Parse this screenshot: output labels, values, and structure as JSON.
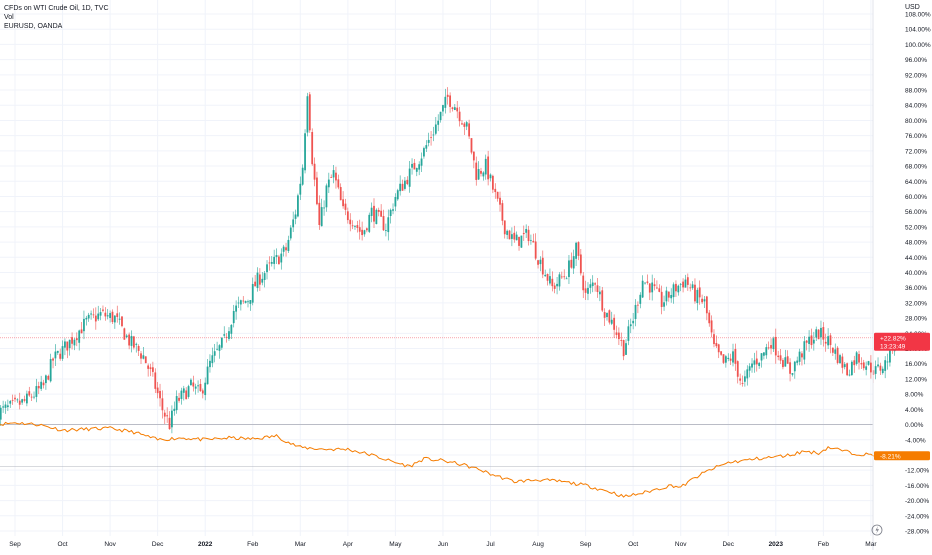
{
  "legend": {
    "symbol": "CFDs on WTI Crude Oil, 1D, TVC",
    "volume": "Vol",
    "compare": "EURUSD, OANDA"
  },
  "currency": "USD",
  "price_badge": {
    "value": "+22.82%",
    "countdown": "13:23:49"
  },
  "compare_badge": {
    "value": "-8.21%"
  },
  "colors": {
    "up": "#26a69a",
    "down": "#ef5350",
    "compare_line": "#f57c00",
    "grid": "#f0f3fa",
    "text": "#131722",
    "badge_price": "#f23645",
    "badge_compare": "#f57c00"
  },
  "chart_data": {
    "type": "line",
    "y_unit": "%",
    "ylim": [
      -28,
      108
    ],
    "y_ticks": [
      "108.00%",
      "104.00%",
      "100.00%",
      "96.00%",
      "92.00%",
      "88.00%",
      "84.00%",
      "80.00%",
      "76.00%",
      "72.00%",
      "68.00%",
      "64.00%",
      "60.00%",
      "56.00%",
      "52.00%",
      "48.00%",
      "44.00%",
      "40.00%",
      "36.00%",
      "32.00%",
      "28.00%",
      "24.00%",
      "20.00%",
      "16.00%",
      "12.00%",
      "8.00%",
      "4.00%",
      "0.00%",
      "-4.00%",
      "-8.00%",
      "-12.00%",
      "-16.00%",
      "-20.00%",
      "-24.00%",
      "-28.00%"
    ],
    "x_ticks": [
      {
        "label": "Sep",
        "m": 0
      },
      {
        "label": "Oct",
        "m": 1
      },
      {
        "label": "Nov",
        "m": 2
      },
      {
        "label": "Dec",
        "m": 3
      },
      {
        "label": "2022",
        "m": 4
      },
      {
        "label": "Feb",
        "m": 5
      },
      {
        "label": "Mar",
        "m": 6
      },
      {
        "label": "Apr",
        "m": 7
      },
      {
        "label": "May",
        "m": 8
      },
      {
        "label": "Jun",
        "m": 9
      },
      {
        "label": "Jul",
        "m": 10
      },
      {
        "label": "Aug",
        "m": 11
      },
      {
        "label": "Sep",
        "m": 12
      },
      {
        "label": "Oct",
        "m": 13
      },
      {
        "label": "Nov",
        "m": 14
      },
      {
        "label": "Dec",
        "m": 15
      },
      {
        "label": "2023",
        "m": 16
      },
      {
        "label": "Feb",
        "m": 17
      },
      {
        "label": "Mar",
        "m": 18
      }
    ],
    "bold_x_labels": [
      "2022",
      "2023"
    ],
    "series": [
      {
        "name": "CFDs on WTI Crude Oil",
        "style": "candles",
        "last": 22.82,
        "points": [
          [
            -0.4,
            3
          ],
          [
            0.2,
            6
          ],
          [
            0.6,
            10
          ],
          [
            0.8,
            17
          ],
          [
            1.1,
            21
          ],
          [
            1.5,
            27
          ],
          [
            1.8,
            29
          ],
          [
            2.1,
            28
          ],
          [
            2.4,
            22
          ],
          [
            2.7,
            18
          ],
          [
            2.9,
            12
          ],
          [
            3.1,
            4
          ],
          [
            3.25,
            0
          ],
          [
            3.4,
            6
          ],
          [
            3.7,
            10
          ],
          [
            3.9,
            8
          ],
          [
            4.1,
            16
          ],
          [
            4.4,
            22
          ],
          [
            4.6,
            30
          ],
          [
            4.9,
            33
          ],
          [
            5.1,
            38
          ],
          [
            5.4,
            42
          ],
          [
            5.7,
            46
          ],
          [
            5.9,
            56
          ],
          [
            6.05,
            68
          ],
          [
            6.15,
            88
          ],
          [
            6.25,
            70
          ],
          [
            6.4,
            52
          ],
          [
            6.55,
            62
          ],
          [
            6.7,
            66
          ],
          [
            6.9,
            56
          ],
          [
            7.1,
            54
          ],
          [
            7.3,
            50
          ],
          [
            7.5,
            56
          ],
          [
            7.8,
            52
          ],
          [
            8.0,
            60
          ],
          [
            8.3,
            66
          ],
          [
            8.6,
            72
          ],
          [
            8.9,
            80
          ],
          [
            9.1,
            86
          ],
          [
            9.25,
            84
          ],
          [
            9.5,
            78
          ],
          [
            9.7,
            66
          ],
          [
            9.9,
            68
          ],
          [
            10.1,
            60
          ],
          [
            10.3,
            52
          ],
          [
            10.5,
            48
          ],
          [
            10.8,
            50
          ],
          [
            11.0,
            44
          ],
          [
            11.3,
            36
          ],
          [
            11.6,
            40
          ],
          [
            11.8,
            46
          ],
          [
            12.0,
            34
          ],
          [
            12.2,
            38
          ],
          [
            12.4,
            30
          ],
          [
            12.6,
            26
          ],
          [
            12.8,
            20
          ],
          [
            13.0,
            28
          ],
          [
            13.2,
            38
          ],
          [
            13.4,
            36
          ],
          [
            13.6,
            32
          ],
          [
            13.9,
            36
          ],
          [
            14.1,
            38
          ],
          [
            14.3,
            34
          ],
          [
            14.5,
            32
          ],
          [
            14.7,
            20
          ],
          [
            14.9,
            16
          ],
          [
            15.1,
            18
          ],
          [
            15.3,
            10
          ],
          [
            15.5,
            16
          ],
          [
            15.7,
            18
          ],
          [
            15.9,
            22
          ],
          [
            16.1,
            18
          ],
          [
            16.3,
            14
          ],
          [
            16.5,
            18
          ],
          [
            16.7,
            22
          ],
          [
            16.9,
            24
          ],
          [
            17.1,
            22
          ],
          [
            17.3,
            18
          ],
          [
            17.5,
            14
          ],
          [
            17.7,
            18
          ],
          [
            17.9,
            16
          ],
          [
            18.1,
            14
          ],
          [
            18.3,
            16
          ],
          [
            18.5,
            22.8
          ]
        ]
      },
      {
        "name": "EURUSD, OANDA",
        "style": "line",
        "last": -8.21,
        "points": [
          [
            -0.4,
            0
          ],
          [
            0,
            0.5
          ],
          [
            0.5,
            0
          ],
          [
            1,
            -1.5
          ],
          [
            1.5,
            -1.2
          ],
          [
            2,
            -1
          ],
          [
            2.5,
            -2
          ],
          [
            3,
            -4
          ],
          [
            3.5,
            -3.5
          ],
          [
            4,
            -4
          ],
          [
            4.5,
            -3.5
          ],
          [
            5,
            -3.8
          ],
          [
            5.5,
            -3
          ],
          [
            5.8,
            -5
          ],
          [
            6,
            -6
          ],
          [
            6.5,
            -6.5
          ],
          [
            7,
            -6.5
          ],
          [
            7.5,
            -8
          ],
          [
            8,
            -10
          ],
          [
            8.3,
            -11
          ],
          [
            8.6,
            -9
          ],
          [
            9,
            -9.5
          ],
          [
            9.4,
            -10.5
          ],
          [
            9.8,
            -12
          ],
          [
            10,
            -13
          ],
          [
            10.5,
            -15
          ],
          [
            11,
            -14.5
          ],
          [
            11.5,
            -15
          ],
          [
            12,
            -16
          ],
          [
            12.3,
            -17
          ],
          [
            12.6,
            -18
          ],
          [
            12.8,
            -19
          ],
          [
            13.2,
            -18
          ],
          [
            13.5,
            -17
          ],
          [
            13.8,
            -16
          ],
          [
            14,
            -16.5
          ],
          [
            14.3,
            -14
          ],
          [
            14.6,
            -12
          ],
          [
            15,
            -10
          ],
          [
            15.3,
            -9.5
          ],
          [
            15.6,
            -9
          ],
          [
            16,
            -8.5
          ],
          [
            16.3,
            -8
          ],
          [
            16.6,
            -7
          ],
          [
            16.9,
            -7.5
          ],
          [
            17.1,
            -6
          ],
          [
            17.3,
            -6.5
          ],
          [
            17.6,
            -7.5
          ],
          [
            18,
            -8
          ],
          [
            18.3,
            -8.5
          ],
          [
            18.5,
            -8.21
          ]
        ]
      }
    ]
  }
}
